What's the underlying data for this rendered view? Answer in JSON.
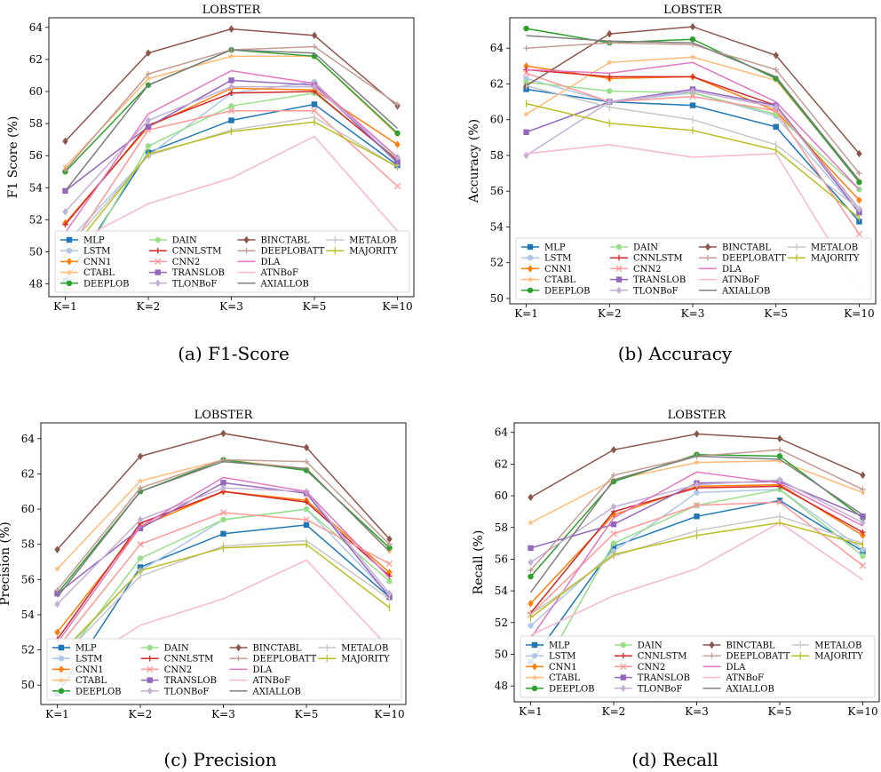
{
  "captions": [
    "(a) F1-Score",
    "(b) Accuracy",
    "(c) Precision",
    "(d) Recall"
  ],
  "colors": {
    "MLP": "#1f77b4",
    "LSTM": "#aec7e8",
    "CNN1": "#ff7f0e",
    "CTABL": "#ffbb78",
    "DEEPLOB": "#2ca02c",
    "DAIN": "#98df8a",
    "CNNLSTM": "#d62728",
    "CNN2": "#ff9896",
    "TRANSLOB": "#9467bd",
    "TLONBoF": "#c5b0d5",
    "BINCTABL": "#8c564b",
    "DEEPLOBATT": "#c49c94",
    "DLA": "#e377c2",
    "ATNBoF": "#f7b6d2",
    "AXIALLOB": "#7f7f7f",
    "METALOB": "#c7c7c7",
    "MAJORITY": "#bcbd22"
  },
  "markers": {
    "MLP": "square",
    "LSTM": "circle",
    "CNN1": "diamond",
    "CTABL": "star",
    "DEEPLOB": "circle",
    "DAIN": "circle",
    "CNNLSTM": "plus",
    "CNN2": "x",
    "TRANSLOB": "square",
    "TLONBoF": "diamond",
    "BINCTABL": "diamond",
    "DEEPLOBATT": "plus",
    "DLA": "none",
    "ATNBoF": "none",
    "AXIALLOB": "none",
    "METALOB": "tick",
    "MAJORITY": "tick"
  },
  "chart_data": [
    {
      "type": "line",
      "title": "LOBSTER",
      "ylabel": "F1 Score (%)",
      "xlabel": "",
      "categories": [
        "K=1",
        "K=2",
        "K=3",
        "K=5",
        "K=10"
      ],
      "ylim": [
        47.2,
        64.6
      ],
      "yticks": [
        48,
        50,
        52,
        54,
        56,
        58,
        60,
        62,
        64
      ],
      "legend_position": "lower-right",
      "series": [
        {
          "name": "MLP",
          "values": [
            48.2,
            56.2,
            58.2,
            59.2,
            55.4
          ]
        },
        {
          "name": "LSTM",
          "values": [
            50.5,
            56.0,
            59.9,
            60.6,
            55.5
          ]
        },
        {
          "name": "CNN1",
          "values": [
            51.8,
            57.8,
            60.2,
            60.1,
            56.7
          ]
        },
        {
          "name": "CTABL",
          "values": [
            55.3,
            60.8,
            62.2,
            62.2,
            57.3
          ]
        },
        {
          "name": "DEEPLOB",
          "values": [
            55.0,
            60.4,
            62.6,
            62.2,
            57.4
          ]
        },
        {
          "name": "DAIN",
          "values": [
            47.7,
            56.6,
            59.1,
            59.9,
            55.8
          ]
        },
        {
          "name": "CNNLSTM",
          "values": [
            51.7,
            57.9,
            59.9,
            60.0,
            55.7
          ]
        },
        {
          "name": "CNN2",
          "values": [
            49.8,
            57.6,
            58.8,
            58.8,
            54.1
          ]
        },
        {
          "name": "TRANSLOB",
          "values": [
            53.8,
            57.8,
            60.7,
            60.4,
            55.6
          ]
        },
        {
          "name": "TLONBoF",
          "values": [
            52.5,
            58.2,
            60.3,
            60.3,
            55.9
          ]
        },
        {
          "name": "BINCTABL",
          "values": [
            56.9,
            62.4,
            63.9,
            63.5,
            59.1
          ]
        },
        {
          "name": "DEEPLOBATT",
          "values": [
            55.1,
            61.1,
            62.6,
            62.8,
            59.2
          ]
        },
        {
          "name": "DLA",
          "values": [
            51.2,
            58.6,
            61.3,
            60.5,
            55.9
          ]
        },
        {
          "name": "ATNBoF",
          "values": [
            50.3,
            53.0,
            54.6,
            57.2,
            51.3
          ]
        },
        {
          "name": "AXIALLOB",
          "values": [
            53.8,
            60.4,
            62.6,
            62.4,
            57.7
          ]
        },
        {
          "name": "METALOB",
          "values": [
            50.1,
            56.0,
            57.6,
            58.4,
            55.3
          ]
        },
        {
          "name": "MAJORITY",
          "values": [
            49.6,
            56.1,
            57.5,
            58.1,
            55.3
          ]
        }
      ]
    },
    {
      "type": "line",
      "title": "LOBSTER",
      "ylabel": "Accuracy (%)",
      "xlabel": "",
      "categories": [
        "K=1",
        "K=2",
        "K=3",
        "K=5",
        "K=10"
      ],
      "ylim": [
        49.7,
        65.7
      ],
      "yticks": [
        50,
        52,
        54,
        56,
        58,
        60,
        62,
        64
      ],
      "legend_position": "lower-right",
      "series": [
        {
          "name": "MLP",
          "values": [
            61.7,
            61.0,
            60.8,
            59.6,
            54.3
          ]
        },
        {
          "name": "LSTM",
          "values": [
            62.3,
            61.0,
            61.5,
            60.2,
            54.8
          ]
        },
        {
          "name": "CNN1",
          "values": [
            63.0,
            62.3,
            62.4,
            60.5,
            55.5
          ]
        },
        {
          "name": "CTABL",
          "values": [
            60.3,
            63.2,
            63.5,
            62.2,
            56.6
          ]
        },
        {
          "name": "DEEPLOB",
          "values": [
            65.1,
            64.3,
            64.5,
            62.3,
            56.5
          ]
        },
        {
          "name": "DAIN",
          "values": [
            62.1,
            61.6,
            61.5,
            60.3,
            56.1
          ]
        },
        {
          "name": "CNNLSTM",
          "values": [
            62.8,
            62.4,
            62.4,
            60.8,
            55.0
          ]
        },
        {
          "name": "CNN2",
          "values": [
            62.6,
            61.0,
            61.3,
            60.5,
            53.6
          ]
        },
        {
          "name": "TRANSLOB",
          "values": [
            59.3,
            61.0,
            61.7,
            60.8,
            54.8
          ]
        },
        {
          "name": "TLONBoF",
          "values": [
            58.0,
            61.0,
            61.6,
            60.7,
            55.0
          ]
        },
        {
          "name": "BINCTABL",
          "values": [
            61.9,
            64.8,
            65.2,
            63.6,
            58.1
          ]
        },
        {
          "name": "DEEPLOBATT",
          "values": [
            64.0,
            64.3,
            64.2,
            62.8,
            57.0
          ]
        },
        {
          "name": "DLA",
          "values": [
            62.8,
            62.6,
            63.2,
            61.0,
            56.1
          ]
        },
        {
          "name": "ATNBoF",
          "values": [
            58.1,
            58.6,
            57.9,
            58.1,
            50.5
          ]
        },
        {
          "name": "AXIALLOB",
          "values": [
            64.7,
            64.4,
            64.3,
            62.4,
            56.6
          ]
        },
        {
          "name": "METALOB",
          "values": [
            61.9,
            60.7,
            60.0,
            58.6,
            55.0
          ]
        },
        {
          "name": "MAJORITY",
          "values": [
            60.9,
            59.8,
            59.4,
            58.3,
            54.5
          ]
        }
      ]
    },
    {
      "type": "line",
      "title": "LOBSTER",
      "ylabel": "Precision (%)",
      "xlabel": "",
      "categories": [
        "K=1",
        "K=2",
        "K=3",
        "K=5",
        "K=10"
      ],
      "ylim": [
        48.9,
        64.9
      ],
      "yticks": [
        50,
        52,
        54,
        56,
        58,
        60,
        62,
        64
      ],
      "legend_position": "lower-right",
      "series": [
        {
          "name": "MLP",
          "values": [
            49.5,
            56.7,
            58.6,
            59.1,
            55.0
          ]
        },
        {
          "name": "LSTM",
          "values": [
            51.5,
            56.5,
            59.4,
            60.0,
            55.1
          ]
        },
        {
          "name": "CNN1",
          "values": [
            53.0,
            59.0,
            61.0,
            60.5,
            56.4
          ]
        },
        {
          "name": "CTABL",
          "values": [
            56.6,
            61.6,
            62.8,
            62.3,
            57.6
          ]
        },
        {
          "name": "DEEPLOB",
          "values": [
            55.2,
            61.0,
            62.8,
            62.2,
            57.8
          ]
        },
        {
          "name": "DAIN",
          "values": [
            51.0,
            57.2,
            59.4,
            60.0,
            55.9
          ]
        },
        {
          "name": "CNNLSTM",
          "values": [
            52.6,
            59.2,
            61.0,
            60.4,
            56.2
          ]
        },
        {
          "name": "CNN2",
          "values": [
            52.1,
            58.0,
            59.8,
            59.4,
            56.9
          ]
        },
        {
          "name": "TRANSLOB",
          "values": [
            55.2,
            58.9,
            61.5,
            60.9,
            55.0
          ]
        },
        {
          "name": "TLONBoF",
          "values": [
            54.6,
            59.4,
            61.2,
            61.0,
            55.2
          ]
        },
        {
          "name": "BINCTABL",
          "values": [
            57.7,
            63.0,
            64.3,
            63.5,
            58.3
          ]
        },
        {
          "name": "DEEPLOBATT",
          "values": [
            55.4,
            61.2,
            62.8,
            62.7,
            58.0
          ]
        },
        {
          "name": "DLA",
          "values": [
            52.4,
            59.0,
            61.8,
            61.0,
            56.1
          ]
        },
        {
          "name": "ATNBoF",
          "values": [
            50.4,
            53.4,
            54.9,
            57.1,
            52.1
          ]
        },
        {
          "name": "AXIALLOB",
          "values": [
            55.0,
            61.0,
            62.7,
            62.3,
            57.6
          ]
        },
        {
          "name": "METALOB",
          "values": [
            51.3,
            56.2,
            57.9,
            58.2,
            54.9
          ]
        },
        {
          "name": "MAJORITY",
          "values": [
            51.6,
            56.5,
            57.8,
            58.0,
            54.4
          ]
        }
      ]
    },
    {
      "type": "line",
      "title": "LOBSTER",
      "ylabel": "Recall (%)",
      "xlabel": "",
      "categories": [
        "K=1",
        "K=2",
        "K=3",
        "K=5",
        "K=10"
      ],
      "ylim": [
        47.0,
        64.6
      ],
      "yticks": [
        48,
        50,
        52,
        54,
        56,
        58,
        60,
        62,
        64
      ],
      "legend_position": "lower-right",
      "series": [
        {
          "name": "MLP",
          "values": [
            49.5,
            56.8,
            58.7,
            59.7,
            56.5
          ]
        },
        {
          "name": "LSTM",
          "values": [
            51.8,
            56.5,
            60.2,
            60.4,
            56.6
          ]
        },
        {
          "name": "CNN1",
          "values": [
            53.2,
            58.8,
            60.6,
            60.7,
            57.5
          ]
        },
        {
          "name": "CTABL",
          "values": [
            58.3,
            61.0,
            62.1,
            62.2,
            60.2
          ]
        },
        {
          "name": "DEEPLOB",
          "values": [
            54.9,
            60.9,
            62.6,
            62.5,
            58.6
          ]
        },
        {
          "name": "DAIN",
          "values": [
            47.7,
            57.0,
            59.4,
            60.4,
            56.2
          ]
        },
        {
          "name": "CNNLSTM",
          "values": [
            52.6,
            59.0,
            60.5,
            60.6,
            57.7
          ]
        },
        {
          "name": "CNN2",
          "values": [
            52.5,
            57.6,
            59.4,
            59.6,
            55.6
          ]
        },
        {
          "name": "TRANSLOB",
          "values": [
            56.7,
            58.2,
            60.8,
            60.9,
            58.7
          ]
        },
        {
          "name": "TLONBoF",
          "values": [
            55.8,
            59.3,
            60.7,
            61.0,
            58.3
          ]
        },
        {
          "name": "BINCTABL",
          "values": [
            59.9,
            62.9,
            63.9,
            63.6,
            61.3
          ]
        },
        {
          "name": "DEEPLOBATT",
          "values": [
            55.3,
            61.3,
            62.5,
            62.9,
            60.4
          ]
        },
        {
          "name": "DLA",
          "values": [
            51.0,
            58.6,
            61.5,
            60.8,
            58.1
          ]
        },
        {
          "name": "ATNBoF",
          "values": [
            51.2,
            53.7,
            55.4,
            58.3,
            54.7
          ]
        },
        {
          "name": "AXIALLOB",
          "values": [
            53.9,
            61.0,
            62.5,
            62.3,
            58.8
          ]
        },
        {
          "name": "METALOB",
          "values": [
            52.5,
            56.2,
            57.8,
            58.7,
            57.0
          ]
        },
        {
          "name": "MAJORITY",
          "values": [
            52.3,
            56.3,
            57.5,
            58.3,
            56.9
          ]
        }
      ]
    }
  ]
}
